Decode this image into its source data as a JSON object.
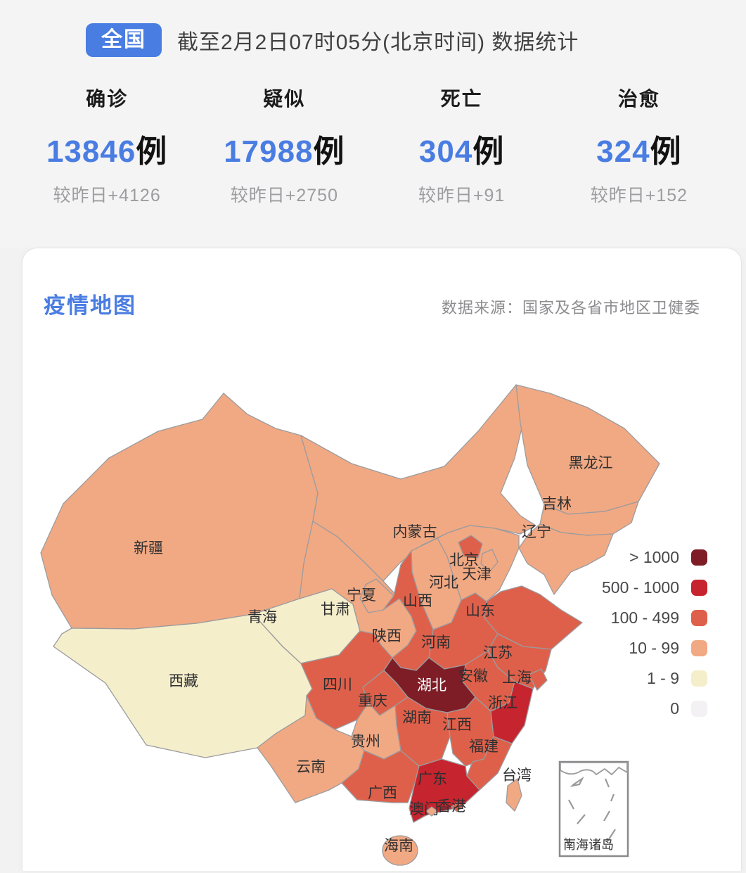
{
  "header": {
    "badge": "全国",
    "title": "截至2月2日07时05分(北京时间)  数据统计"
  },
  "stats": [
    {
      "label": "确诊",
      "value": "13846",
      "unit": "例",
      "change": "较昨日+4126"
    },
    {
      "label": "疑似",
      "value": "17988",
      "unit": "例",
      "change": "较昨日+2750"
    },
    {
      "label": "死亡",
      "value": "304",
      "unit": "例",
      "change": "较昨日+91"
    },
    {
      "label": "治愈",
      "value": "324",
      "unit": "例",
      "change": "较昨日+152"
    }
  ],
  "map_section": {
    "title": "疫情地图",
    "source": "数据来源：国家及各省市地区卫健委",
    "inset_label": "南海诸岛"
  },
  "legend": {
    "position": "right",
    "items": [
      {
        "label": "> 1000",
        "band": ">1000"
      },
      {
        "label": "500 - 1000",
        "band": "500-1000"
      },
      {
        "label": "100 - 499",
        "band": "100-499"
      },
      {
        "label": "10 - 99",
        "band": "10-99"
      },
      {
        "label": "1 - 9",
        "band": "1-9"
      },
      {
        "label": "0",
        "band": "0"
      }
    ]
  },
  "colors": {
    ">1000": "#7e1d26",
    "500-1000": "#c6242e",
    "100-499": "#de604a",
    "10-99": "#f1a983",
    "1-9": "#f4eecb",
    "0": "#f4f1f4",
    "accent_blue": "#4a7de2",
    "map_border": "#9b9b9e",
    "label_dark": "#2e2e30",
    "label_light": "#ffffff"
  },
  "provinces": [
    {
      "id": "xinjiang",
      "name": "新疆",
      "band": "10-99"
    },
    {
      "id": "xizang",
      "name": "西藏",
      "band": "1-9"
    },
    {
      "id": "qinghai",
      "name": "青海",
      "band": "1-9"
    },
    {
      "id": "gansu",
      "name": "甘肃",
      "band": "10-99"
    },
    {
      "id": "neimenggu",
      "name": "内蒙古",
      "band": "10-99"
    },
    {
      "id": "ningxia",
      "name": "宁夏",
      "band": "10-99"
    },
    {
      "id": "heilongjiang",
      "name": "黑龙江",
      "band": "10-99"
    },
    {
      "id": "jilin",
      "name": "吉林",
      "band": "10-99"
    },
    {
      "id": "liaoning",
      "name": "辽宁",
      "band": "10-99"
    },
    {
      "id": "hebei",
      "name": "河北",
      "band": "10-99"
    },
    {
      "id": "beijing",
      "name": "北京",
      "band": "100-499"
    },
    {
      "id": "tianjin",
      "name": "天津",
      "band": "10-99"
    },
    {
      "id": "shanxi",
      "name": "山西",
      "band": "10-99"
    },
    {
      "id": "shandong",
      "name": "山东",
      "band": "100-499"
    },
    {
      "id": "shaanxi",
      "name": "陕西",
      "band": "100-499"
    },
    {
      "id": "henan",
      "name": "河南",
      "band": "100-499"
    },
    {
      "id": "jiangsu",
      "name": "江苏",
      "band": "100-499"
    },
    {
      "id": "anhui",
      "name": "安徽",
      "band": "100-499"
    },
    {
      "id": "shanghai",
      "name": "上海",
      "band": "100-499"
    },
    {
      "id": "sichuan",
      "name": "四川",
      "band": "100-499"
    },
    {
      "id": "chongqing",
      "name": "重庆",
      "band": "100-499"
    },
    {
      "id": "hubei",
      "name": "湖北",
      "band": ">1000"
    },
    {
      "id": "hunan",
      "name": "湖南",
      "band": "100-499"
    },
    {
      "id": "jiangxi",
      "name": "江西",
      "band": "100-499"
    },
    {
      "id": "zhejiang",
      "name": "浙江",
      "band": "500-1000"
    },
    {
      "id": "guizhou",
      "name": "贵州",
      "band": "10-99"
    },
    {
      "id": "fujian",
      "name": "福建",
      "band": "100-499"
    },
    {
      "id": "yunnan",
      "name": "云南",
      "band": "10-99"
    },
    {
      "id": "guangxi",
      "name": "广西",
      "band": "100-499"
    },
    {
      "id": "guangdong",
      "name": "广东",
      "band": "500-1000"
    },
    {
      "id": "aomen",
      "name": "澳门",
      "band": "10-99"
    },
    {
      "id": "xianggang",
      "name": "香港",
      "band": "100-499"
    },
    {
      "id": "taiwan",
      "name": "台湾",
      "band": "10-99"
    },
    {
      "id": "hainan",
      "name": "海南",
      "band": "10-99"
    }
  ]
}
